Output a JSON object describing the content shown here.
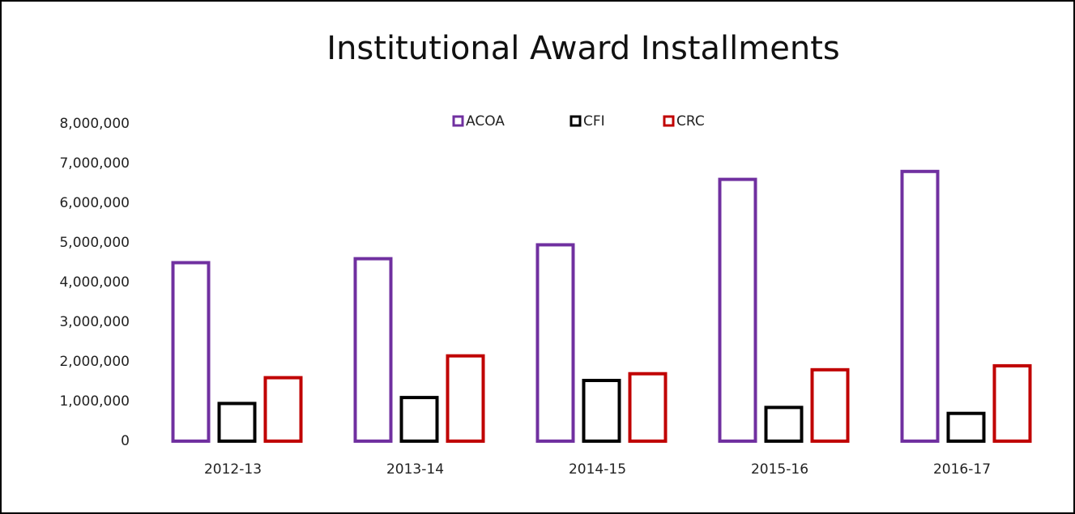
{
  "chart_data": {
    "type": "bar",
    "title": "Institutional Award Installments",
    "categories": [
      "2012-13",
      "2013-14",
      "2014-15",
      "2015-16",
      "2016-17"
    ],
    "series": [
      {
        "name": "ACOA",
        "color": "#7030a0",
        "values": [
          4500000,
          4600000,
          4950000,
          6600000,
          6800000
        ]
      },
      {
        "name": "CFI",
        "color": "#000000",
        "values": [
          950000,
          1100000,
          1530000,
          850000,
          700000
        ]
      },
      {
        "name": "CRC",
        "color": "#c00000",
        "values": [
          1600000,
          2150000,
          1700000,
          1800000,
          1900000
        ]
      }
    ],
    "ylim": [
      0,
      8000000
    ],
    "yticks": [
      0,
      {
        "value": 1000000,
        "label": "1,000,000"
      },
      {
        "value": 2000000,
        "label": "2,000,000"
      },
      {
        "value": 3000000,
        "label": "3,000,000"
      },
      {
        "value": 4000000,
        "label": "4,000,000"
      },
      {
        "value": 5000000,
        "label": "5,000,000"
      },
      {
        "value": 6000000,
        "label": "6,000,000"
      },
      {
        "value": 7000000,
        "label": "7,000,000"
      },
      {
        "value": 8000000,
        "label": "8,000,000"
      }
    ],
    "grid": false,
    "legend": "top"
  }
}
